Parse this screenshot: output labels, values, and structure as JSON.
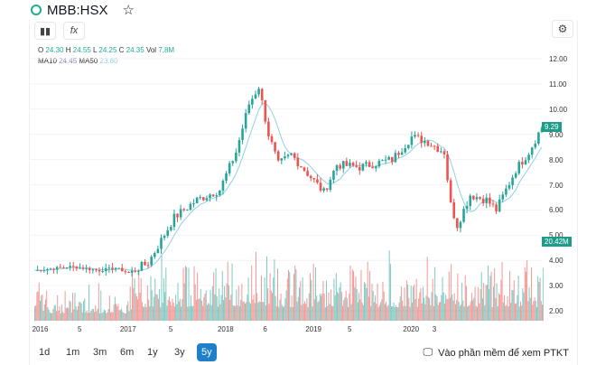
{
  "header": {
    "symbol": "MBB:HSX",
    "clock_icon": "clock-icon",
    "star_icon": "star-icon"
  },
  "toolbar": {
    "candles_icon": "candlestick-icon",
    "indicator_label": "fx",
    "settings_icon": "gear-icon"
  },
  "legend": {
    "o_label": "O",
    "o": "24.30",
    "h_label": "H",
    "h": "24.55",
    "l_label": "L",
    "l": "24.25",
    "c_label": "C",
    "c": "24.35",
    "vol_label": "Vol",
    "vol": "7,8M",
    "ma10_label": "MA10",
    "ma10": "24.45",
    "ma50_label": "MA50",
    "ma50": "23.80"
  },
  "colors": {
    "up": "#26a69a",
    "down": "#ef5350",
    "ma10": "#8e7cc3",
    "ma50": "#8fd0e8",
    "accent": "#1e80c8"
  },
  "chart_data": {
    "type": "candlestick",
    "y_ticks": [
      "12.00",
      "11.00",
      "10.00",
      "9.00",
      "8.00",
      "7.00",
      "6.00",
      "5.00",
      "4.00",
      "3.00",
      "2.00"
    ],
    "ylim": [
      2,
      12
    ],
    "price_keypoints": [
      [
        0,
        3.6
      ],
      [
        11,
        3.75
      ],
      [
        20,
        3.6
      ],
      [
        25,
        3.7
      ],
      [
        29,
        3.5
      ],
      [
        35,
        3.9
      ],
      [
        43,
        5.7
      ],
      [
        50,
        6.4
      ],
      [
        57,
        6.8
      ],
      [
        62,
        8.3
      ],
      [
        66,
        10.2
      ],
      [
        69,
        10.9
      ],
      [
        72,
        9.0
      ],
      [
        75,
        7.8
      ],
      [
        79,
        8.2
      ],
      [
        83,
        7.6
      ],
      [
        89,
        6.7
      ],
      [
        93,
        7.8
      ],
      [
        100,
        7.7
      ],
      [
        110,
        8.0
      ],
      [
        116,
        8.9
      ],
      [
        121,
        8.7
      ],
      [
        126,
        8.3
      ],
      [
        128,
        6.2
      ],
      [
        130,
        5.4
      ],
      [
        134,
        6.6
      ],
      [
        139,
        6.4
      ],
      [
        142,
        6.0
      ],
      [
        148,
        7.6
      ],
      [
        152,
        8.3
      ],
      [
        156,
        9.29
      ]
    ],
    "last_price": "9.29",
    "last_volume": "20.42M",
    "x_ticks": [
      {
        "label": "2016",
        "at": 1
      },
      {
        "label": "5",
        "at": 15
      },
      {
        "label": "2017",
        "at": 28
      },
      {
        "label": "5",
        "at": 43
      },
      {
        "label": "2018",
        "at": 58
      },
      {
        "label": "6",
        "at": 72
      },
      {
        "label": "2019",
        "at": 85
      },
      {
        "label": "5",
        "at": 98
      },
      {
        "label": "2020",
        "at": 115
      },
      {
        "label": "3",
        "at": 124
      }
    ]
  },
  "ranges": [
    "1d",
    "1m",
    "3m",
    "6m",
    "1y",
    "3y",
    "5y"
  ],
  "active_range": "5y",
  "ptkt_label": "Vào phần mềm để xem PTKT"
}
